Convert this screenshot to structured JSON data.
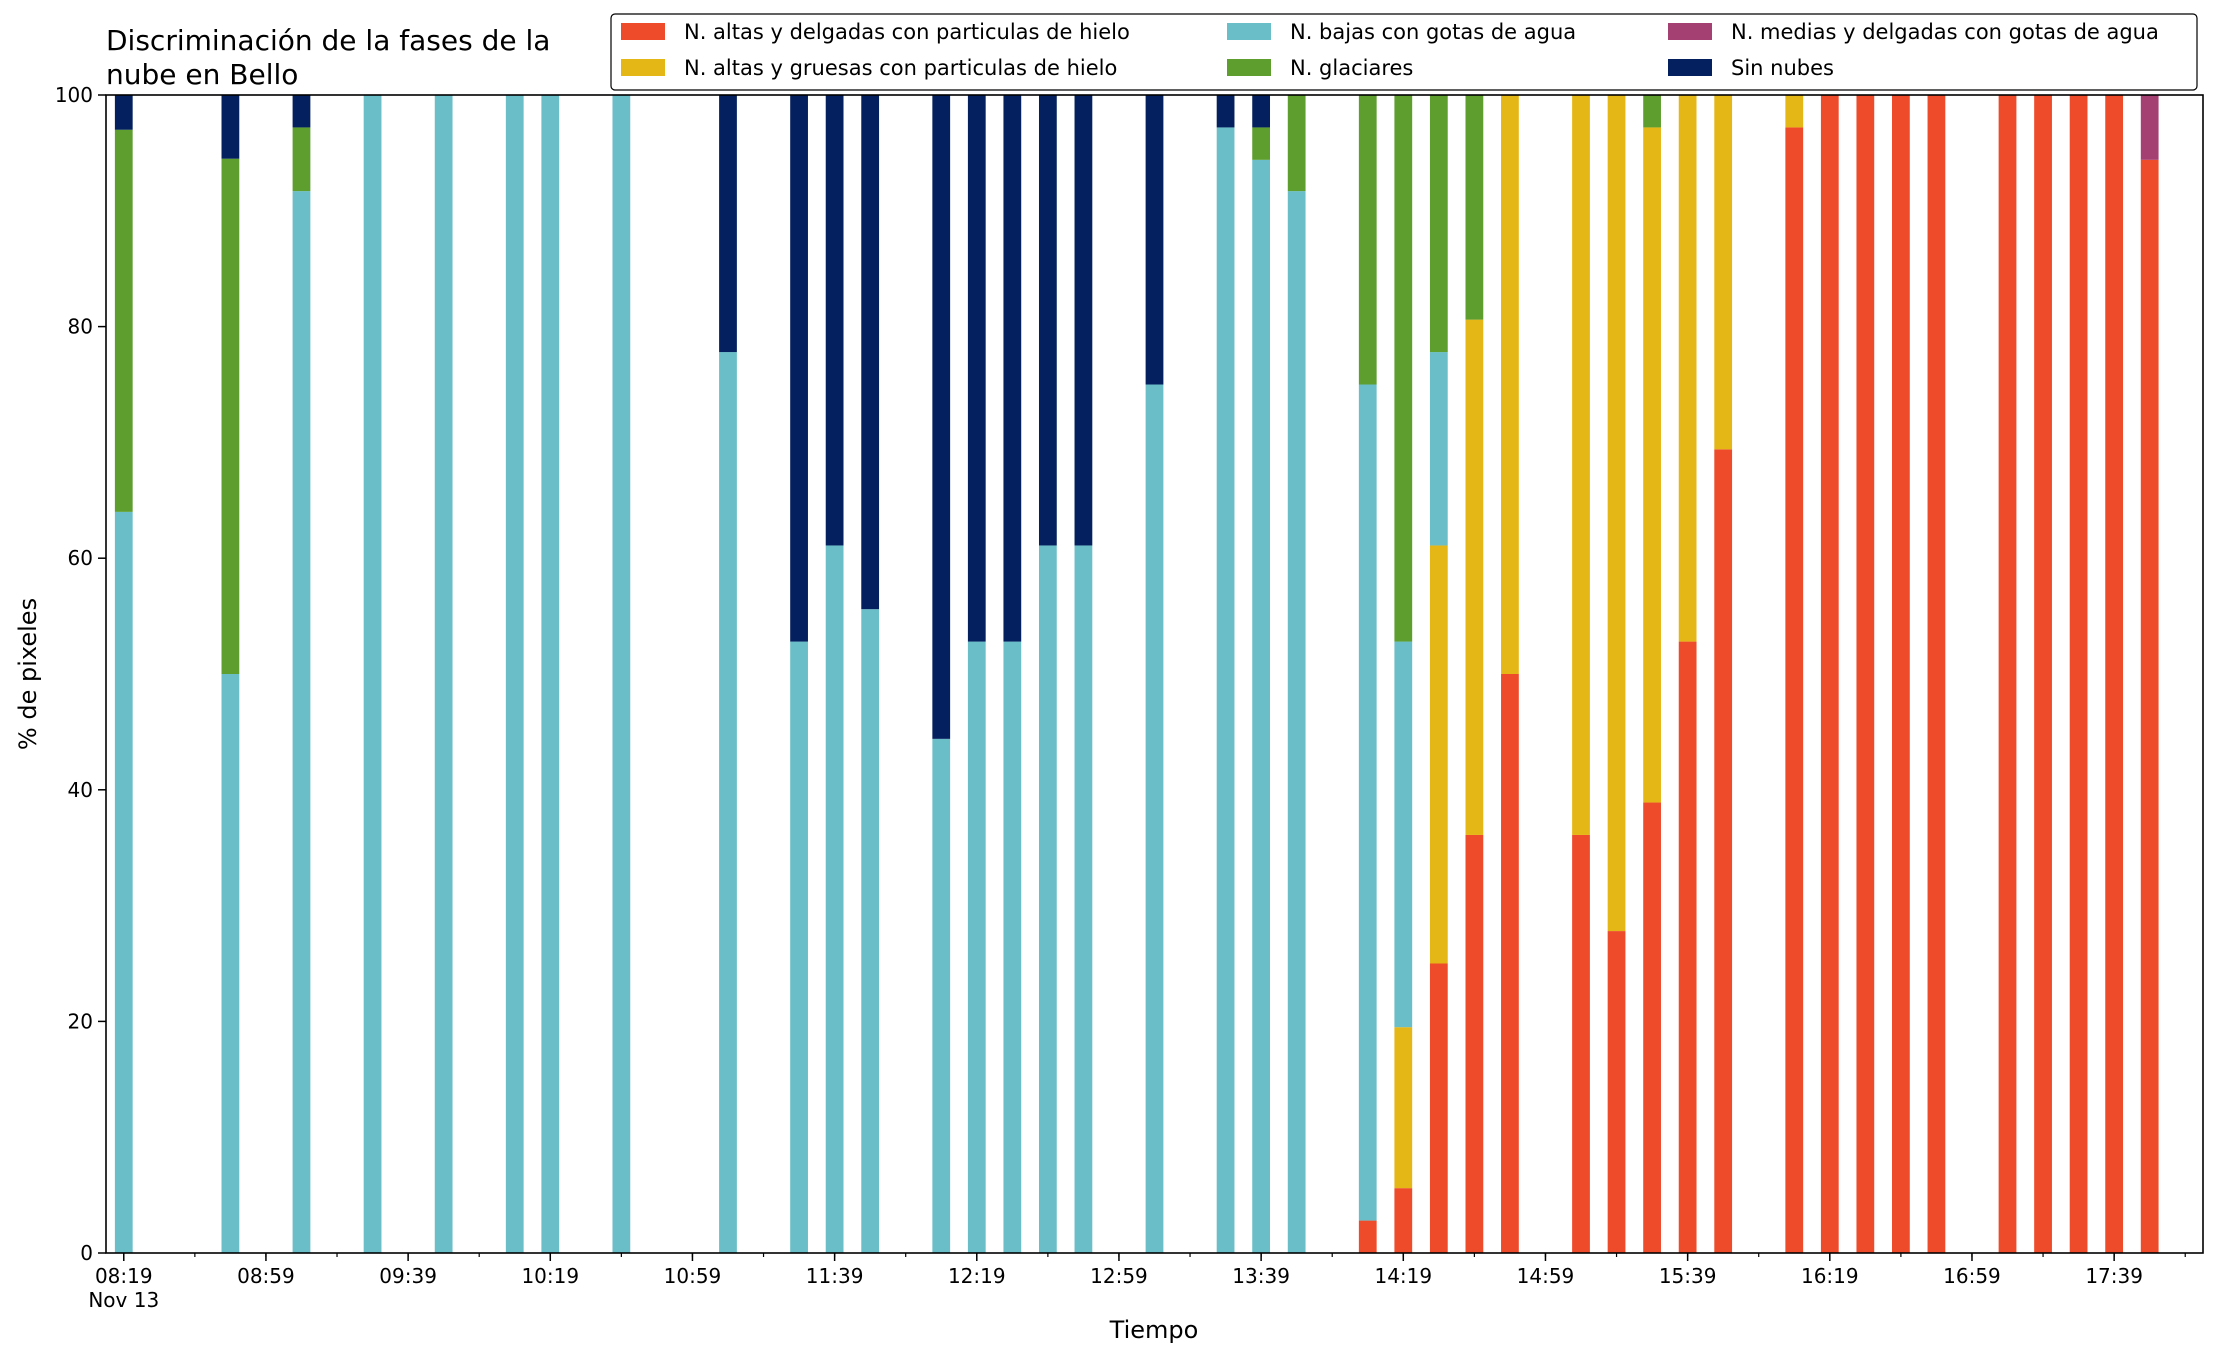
{
  "chart_data": {
    "type": "bar",
    "stacked": true,
    "title_line1": "Discriminación de la fases de la",
    "title_line2": "nube en Bello",
    "xlabel": "Tiempo",
    "ylabel": "% de pixeles",
    "ylim": [
      0,
      100
    ],
    "yticks": [
      0,
      20,
      40,
      60,
      80,
      100
    ],
    "xlim_slots": [
      -0.5,
      58.5
    ],
    "x_major_ticks": [
      {
        "slot": 0,
        "label": "08:19",
        "sublabel": "Nov 13"
      },
      {
        "slot": 4,
        "label": "08:59"
      },
      {
        "slot": 8,
        "label": "09:39"
      },
      {
        "slot": 12,
        "label": "10:19"
      },
      {
        "slot": 16,
        "label": "10:59"
      },
      {
        "slot": 20,
        "label": "11:39"
      },
      {
        "slot": 24,
        "label": "12:19"
      },
      {
        "slot": 28,
        "label": "12:59"
      },
      {
        "slot": 32,
        "label": "13:39"
      },
      {
        "slot": 36,
        "label": "14:19"
      },
      {
        "slot": 40,
        "label": "14:59"
      },
      {
        "slot": 44,
        "label": "15:39"
      },
      {
        "slot": 48,
        "label": "16:19"
      },
      {
        "slot": 52,
        "label": "16:59"
      },
      {
        "slot": 56,
        "label": "17:39"
      }
    ],
    "legend_position": "top-right",
    "legend_columns": 3,
    "series": [
      {
        "name": "N. altas y delgadas con particulas de hielo",
        "color": "#ee4b2b"
      },
      {
        "name": "N. altas y gruesas con particulas de hielo",
        "color": "#e5b716"
      },
      {
        "name": "N. bajas con gotas de agua",
        "color": "#6abec8"
      },
      {
        "name": "N. glaciares",
        "color": "#5e9e2e"
      },
      {
        "name": "N. medias y delgadas con gotas de agua",
        "color": "#a54073"
      },
      {
        "name": "Sin nubes",
        "color": "#04205e"
      }
    ],
    "bars": [
      {
        "slot": 0,
        "values": [
          0,
          0,
          64,
          33,
          0,
          3
        ]
      },
      {
        "slot": 3,
        "values": [
          0,
          0,
          50,
          44.5,
          0,
          5.5
        ]
      },
      {
        "slot": 5,
        "values": [
          0,
          0,
          91.7,
          5.5,
          0,
          2.8
        ]
      },
      {
        "slot": 7,
        "values": [
          0,
          0,
          100,
          0,
          0,
          0
        ]
      },
      {
        "slot": 9,
        "values": [
          0,
          0,
          100,
          0,
          0,
          0
        ]
      },
      {
        "slot": 11,
        "values": [
          0,
          0,
          100,
          0,
          0,
          0
        ]
      },
      {
        "slot": 12,
        "values": [
          0,
          0,
          100,
          0,
          0,
          0
        ]
      },
      {
        "slot": 14,
        "values": [
          0,
          0,
          100,
          0,
          0,
          0
        ]
      },
      {
        "slot": 17,
        "values": [
          0,
          0,
          77.8,
          0,
          0,
          22.2
        ]
      },
      {
        "slot": 19,
        "values": [
          0,
          0,
          52.8,
          0,
          0,
          47.2
        ]
      },
      {
        "slot": 20,
        "values": [
          0,
          0,
          61.1,
          0,
          0,
          38.9
        ]
      },
      {
        "slot": 21,
        "values": [
          0,
          0,
          55.6,
          0,
          0,
          44.4
        ]
      },
      {
        "slot": 23,
        "values": [
          0,
          0,
          44.4,
          0,
          0,
          55.6
        ]
      },
      {
        "slot": 24,
        "values": [
          0,
          0,
          52.8,
          0,
          0,
          47.2
        ]
      },
      {
        "slot": 25,
        "values": [
          0,
          0,
          52.8,
          0,
          0,
          47.2
        ]
      },
      {
        "slot": 26,
        "values": [
          0,
          0,
          61.1,
          0,
          0,
          38.9
        ]
      },
      {
        "slot": 27,
        "values": [
          0,
          0,
          61.1,
          0,
          0,
          38.9
        ]
      },
      {
        "slot": 29,
        "values": [
          0,
          0,
          75,
          0,
          0,
          25
        ]
      },
      {
        "slot": 31,
        "values": [
          0,
          0,
          97.2,
          0,
          0,
          2.8
        ]
      },
      {
        "slot": 32,
        "values": [
          0,
          0,
          94.4,
          2.8,
          0,
          2.8
        ]
      },
      {
        "slot": 33,
        "values": [
          0,
          0,
          91.7,
          8.3,
          0,
          0
        ]
      },
      {
        "slot": 35,
        "values": [
          2.8,
          0,
          72.2,
          25,
          0,
          0
        ]
      },
      {
        "slot": 36,
        "values": [
          5.6,
          13.9,
          33.3,
          47.2,
          0,
          0
        ]
      },
      {
        "slot": 37,
        "values": [
          25,
          36.1,
          16.7,
          22.2,
          0,
          0
        ]
      },
      {
        "slot": 38,
        "values": [
          36.1,
          44.5,
          0,
          19.4,
          0,
          0
        ]
      },
      {
        "slot": 39,
        "values": [
          50,
          50,
          0,
          0,
          0,
          0
        ]
      },
      {
        "slot": 41,
        "values": [
          36.1,
          63.9,
          0,
          0,
          0,
          0
        ]
      },
      {
        "slot": 42,
        "values": [
          27.8,
          72.2,
          0,
          0,
          0,
          0
        ]
      },
      {
        "slot": 43,
        "values": [
          38.9,
          58.3,
          0,
          2.8,
          0,
          0
        ]
      },
      {
        "slot": 44,
        "values": [
          52.8,
          47.2,
          0,
          0,
          0,
          0
        ]
      },
      {
        "slot": 45,
        "values": [
          69.4,
          30.6,
          0,
          0,
          0,
          0
        ]
      },
      {
        "slot": 47,
        "values": [
          97.2,
          2.8,
          0,
          0,
          0,
          0
        ]
      },
      {
        "slot": 48,
        "values": [
          100,
          0,
          0,
          0,
          0,
          0
        ]
      },
      {
        "slot": 49,
        "values": [
          100,
          0,
          0,
          0,
          0,
          0
        ]
      },
      {
        "slot": 50,
        "values": [
          100,
          0,
          0,
          0,
          0,
          0
        ]
      },
      {
        "slot": 51,
        "values": [
          100,
          0,
          0,
          0,
          0,
          0
        ]
      },
      {
        "slot": 53,
        "values": [
          100,
          0,
          0,
          0,
          0,
          0
        ]
      },
      {
        "slot": 54,
        "values": [
          100,
          0,
          0,
          0,
          0,
          0
        ]
      },
      {
        "slot": 55,
        "values": [
          100,
          0,
          0,
          0,
          0,
          0
        ]
      },
      {
        "slot": 56,
        "values": [
          100,
          0,
          0,
          0,
          0,
          0
        ]
      },
      {
        "slot": 57,
        "values": [
          94.4,
          0,
          0,
          0,
          5.6,
          0
        ]
      }
    ]
  }
}
